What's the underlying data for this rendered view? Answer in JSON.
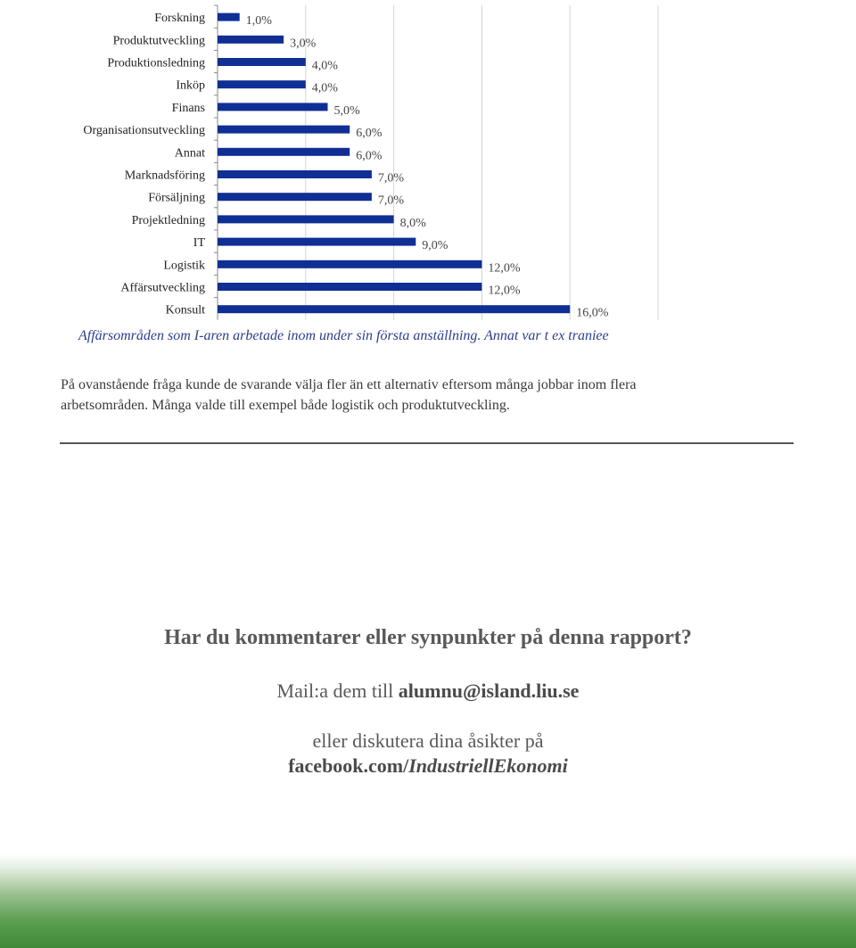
{
  "chart_data": {
    "type": "bar",
    "orientation": "horizontal",
    "categories": [
      "Forskning",
      "Produktutveckling",
      "Produktionsledning",
      "Inköp",
      "Finans",
      "Organisationsutveckling",
      "Annat",
      "Marknadsföring",
      "Försäljning",
      "Projektledning",
      "IT",
      "Logistik",
      "Affärsutveckling",
      "Konsult"
    ],
    "values": [
      1.0,
      3.0,
      4.0,
      4.0,
      5.0,
      6.0,
      6.0,
      7.0,
      7.0,
      8.0,
      9.0,
      12.0,
      12.0,
      16.0
    ],
    "value_labels": [
      "1,0%",
      "3,0%",
      "4,0%",
      "4,0%",
      "5,0%",
      "6,0%",
      "6,0%",
      "7,0%",
      "7,0%",
      "8,0%",
      "9,0%",
      "12,0%",
      "12,0%",
      "16,0%"
    ],
    "xlim": [
      0,
      20
    ],
    "grid": true,
    "colors": {
      "bar": "#0f2f94",
      "grid": "#d4d4d4",
      "axis": "#888888"
    }
  },
  "caption": "Affärsområden som I-aren arbetade inom under sin första anställning. Annat var t ex traniee",
  "body": "På ovanstående fråga kunde de svarande välja fler än ett alternativ eftersom många jobbar inom flera arbetsområden. Många valde till exempel både logistik och produktutveckling.",
  "cta": {
    "title": "Har du kommentarer eller synpunkter på denna rapport?",
    "mail_prefix": "Mail:a dem till ",
    "mail_address": "alumnu@island.liu.se",
    "discuss_text": "eller diskutera dina åsikter på",
    "fb_prefix": "facebook.com/",
    "fb_page": "IndustriellEkonomi"
  },
  "colors": {
    "caption": "#2b3e8c",
    "footer_green": "#4a9140"
  }
}
